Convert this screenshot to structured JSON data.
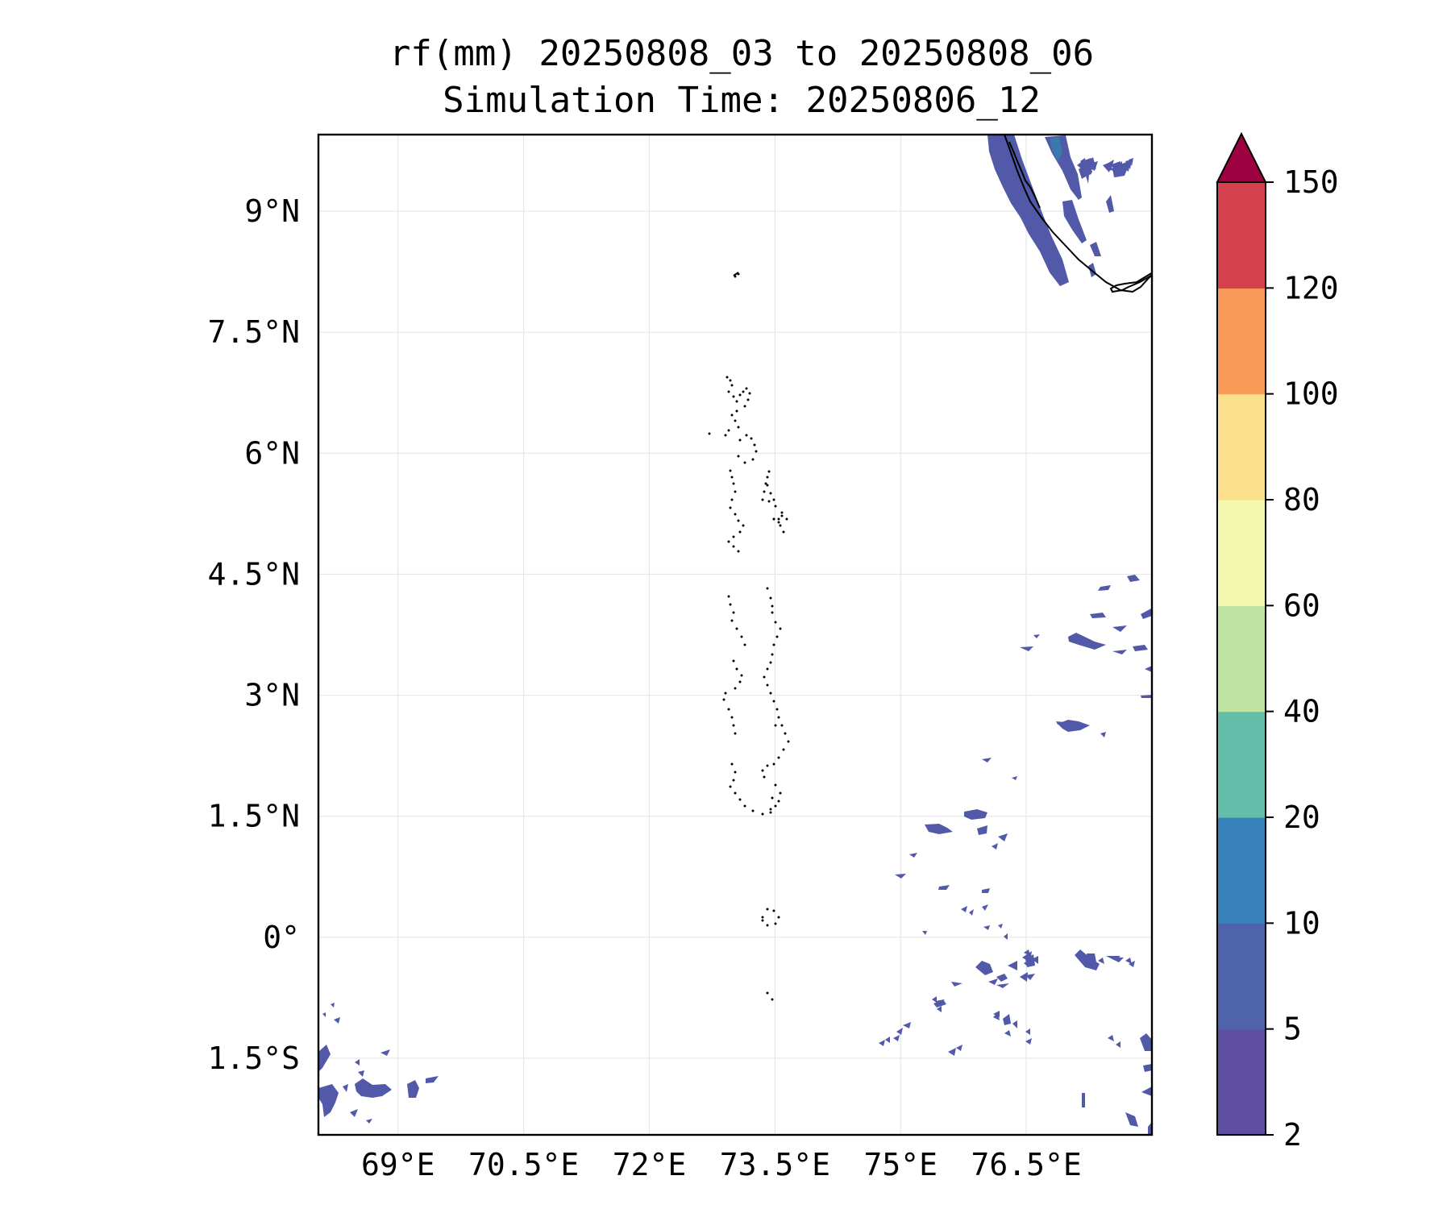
{
  "title": {
    "line1": "rf(mm) 20250808_03 to 20250808_06",
    "line2": "Simulation Time: 20250806_12"
  },
  "map": {
    "lon_range": [
      68.05,
      78.0
    ],
    "lat_range": [
      -2.45,
      9.95
    ],
    "gridlines": true,
    "x_ticks": [
      {
        "value": 69.0,
        "label": "69°E"
      },
      {
        "value": 70.5,
        "label": "70.5°E"
      },
      {
        "value": 72.0,
        "label": "72°E"
      },
      {
        "value": 73.5,
        "label": "73.5°E"
      },
      {
        "value": 75.0,
        "label": "75°E"
      },
      {
        "value": 76.5,
        "label": "76.5°E"
      }
    ],
    "y_ticks": [
      {
        "value": 9.0,
        "label": "9°N"
      },
      {
        "value": 7.5,
        "label": "7.5°N"
      },
      {
        "value": 6.0,
        "label": "6°N"
      },
      {
        "value": 4.5,
        "label": "4.5°N"
      },
      {
        "value": 3.0,
        "label": "3°N"
      },
      {
        "value": 1.5,
        "label": "1.5°N"
      },
      {
        "value": 0.0,
        "label": "0°"
      },
      {
        "value": -1.5,
        "label": "1.5°S"
      }
    ],
    "rain_color": "#5159a8",
    "rain_dark_color": "#3b78ad"
  },
  "colorbar": {
    "extend": "max",
    "levels": [
      {
        "value": "2",
        "color": "#5e4fa2"
      },
      {
        "value": "5",
        "color": "#4f62ac"
      },
      {
        "value": "10",
        "color": "#3782bb"
      },
      {
        "value": "20",
        "color": "#62bea8"
      },
      {
        "value": "40",
        "color": "#bde3a0"
      },
      {
        "value": "60",
        "color": "#f2f8b0"
      },
      {
        "value": "80",
        "color": "#fbe08d"
      },
      {
        "value": "100",
        "color": "#f99b58"
      },
      {
        "value": "120",
        "color": "#d5404e"
      },
      {
        "value": "150",
        "color": "#9e0142"
      }
    ]
  }
}
